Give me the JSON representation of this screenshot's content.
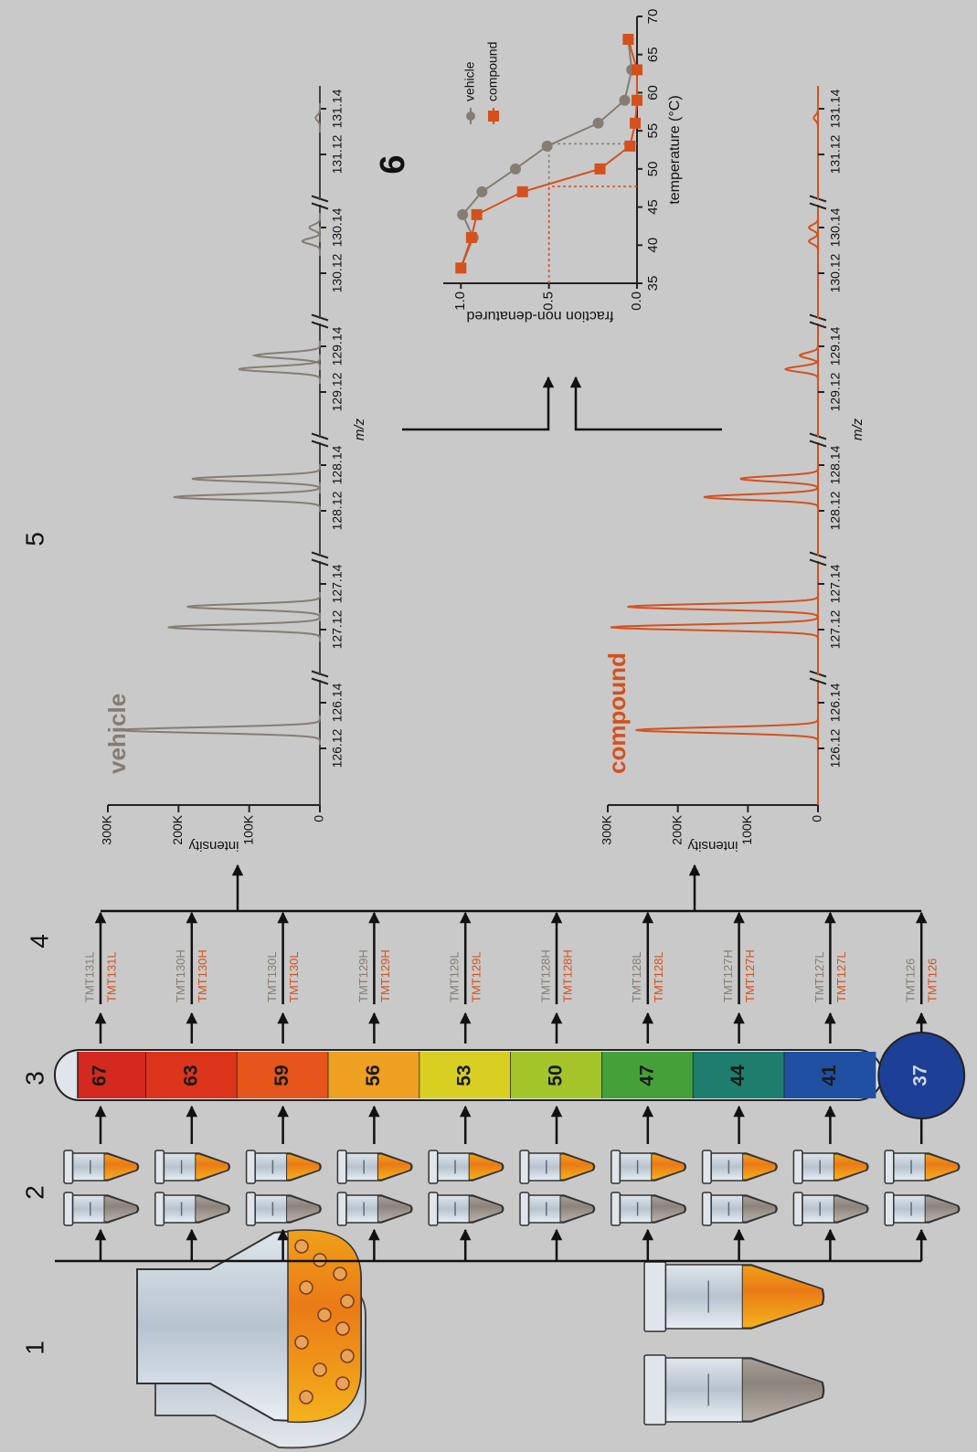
{
  "steps": [
    "1",
    "2",
    "3",
    "4",
    "5",
    "6"
  ],
  "thermometer": {
    "temperatures": [
      67,
      63,
      59,
      56,
      53,
      50,
      47,
      44,
      41,
      37
    ],
    "colors": [
      "#d5281e",
      "#dd341c",
      "#e4561b",
      "#eda022",
      "#d9cf22",
      "#a3c52a",
      "#45a03a",
      "#1e7d6c",
      "#2050a2",
      "#1d3f95"
    ]
  },
  "tmt_labels": [
    "TMT131L",
    "TMT130H",
    "TMT130L",
    "TMT129H",
    "TMT129L",
    "TMT128H",
    "TMT128L",
    "TMT127H",
    "TMT127L",
    "TMT126"
  ],
  "chart_data": [
    {
      "type": "spectrum",
      "title": "vehicle",
      "color": "#857d74",
      "ylabel": "intensity",
      "xlabel": "m/z",
      "xlim_segments": [
        [
          126.1,
          126.15
        ],
        [
          127.1,
          127.15
        ],
        [
          128.1,
          128.15
        ],
        [
          129.1,
          129.15
        ],
        [
          130.1,
          130.15
        ],
        [
          131.1,
          131.15
        ]
      ],
      "xticks": [
        126.12,
        126.14,
        127.12,
        127.14,
        128.12,
        128.14,
        129.12,
        129.14,
        130.12,
        130.14,
        131.12,
        131.14
      ],
      "ylim": [
        0,
        300000
      ],
      "yticks": [
        0,
        {
          "value": 100000,
          "label": "100K"
        },
        {
          "value": 200000,
          "label": "200K"
        },
        {
          "value": 300000,
          "label": "300K"
        }
      ],
      "x": [
        126.128,
        127.121,
        127.13,
        128.126,
        128.134,
        129.13,
        129.136,
        130.134,
        130.14,
        131.136
      ],
      "values": [
        285000,
        215000,
        188000,
        207000,
        181000,
        115000,
        92000,
        25000,
        15000,
        6000
      ]
    },
    {
      "type": "spectrum",
      "title": "compound",
      "color": "#d4511d",
      "ylabel": "intensity",
      "xlabel": "m/z",
      "xlim_segments": [
        [
          126.1,
          126.15
        ],
        [
          127.1,
          127.15
        ],
        [
          128.1,
          128.15
        ],
        [
          129.1,
          129.15
        ],
        [
          130.1,
          130.15
        ],
        [
          131.1,
          131.15
        ]
      ],
      "xticks": [
        126.12,
        126.14,
        127.12,
        127.14,
        128.12,
        128.14,
        129.12,
        129.14,
        130.12,
        130.14,
        131.12,
        131.14
      ],
      "ylim": [
        0,
        300000
      ],
      "yticks": [
        0,
        {
          "value": 100000,
          "label": "100K"
        },
        {
          "value": 200000,
          "label": "200K"
        },
        {
          "value": 300000,
          "label": "300K"
        }
      ],
      "x": [
        126.128,
        127.121,
        127.13,
        128.126,
        128.134,
        129.13,
        129.136,
        130.134,
        130.14,
        131.136
      ],
      "values": [
        260000,
        296000,
        272000,
        163000,
        111000,
        46000,
        26000,
        13000,
        13000,
        6000
      ]
    },
    {
      "type": "scatter",
      "xlabel": "temperature (°C)",
      "ylabel": "fraction non-denatured",
      "xlim": [
        35,
        70
      ],
      "xticks": [
        35,
        40,
        45,
        50,
        55,
        60,
        65,
        70
      ],
      "ylim": [
        0,
        1.1
      ],
      "yticks": [
        {
          "value": 0,
          "label": "0.0"
        },
        {
          "value": 0.5,
          "label": "0.5"
        },
        {
          "value": 1,
          "label": "1.0"
        }
      ],
      "x": [
        37,
        41,
        44,
        47,
        50,
        53,
        56,
        59,
        63,
        67
      ],
      "series": [
        {
          "name": "vehicle",
          "color": "#857d74",
          "marker": "circle",
          "melting_point": 53.3,
          "values": [
            1.0,
            0.93,
            0.99,
            0.88,
            0.69,
            0.51,
            0.22,
            0.07,
            0.03,
            0.05
          ]
        },
        {
          "name": "compound",
          "color": "#d4511d",
          "marker": "square",
          "melting_point": 47.7,
          "values": [
            1.0,
            0.94,
            0.91,
            0.65,
            0.21,
            0.04,
            0.01,
            0.0,
            0.0,
            0.05
          ]
        }
      ]
    }
  ]
}
